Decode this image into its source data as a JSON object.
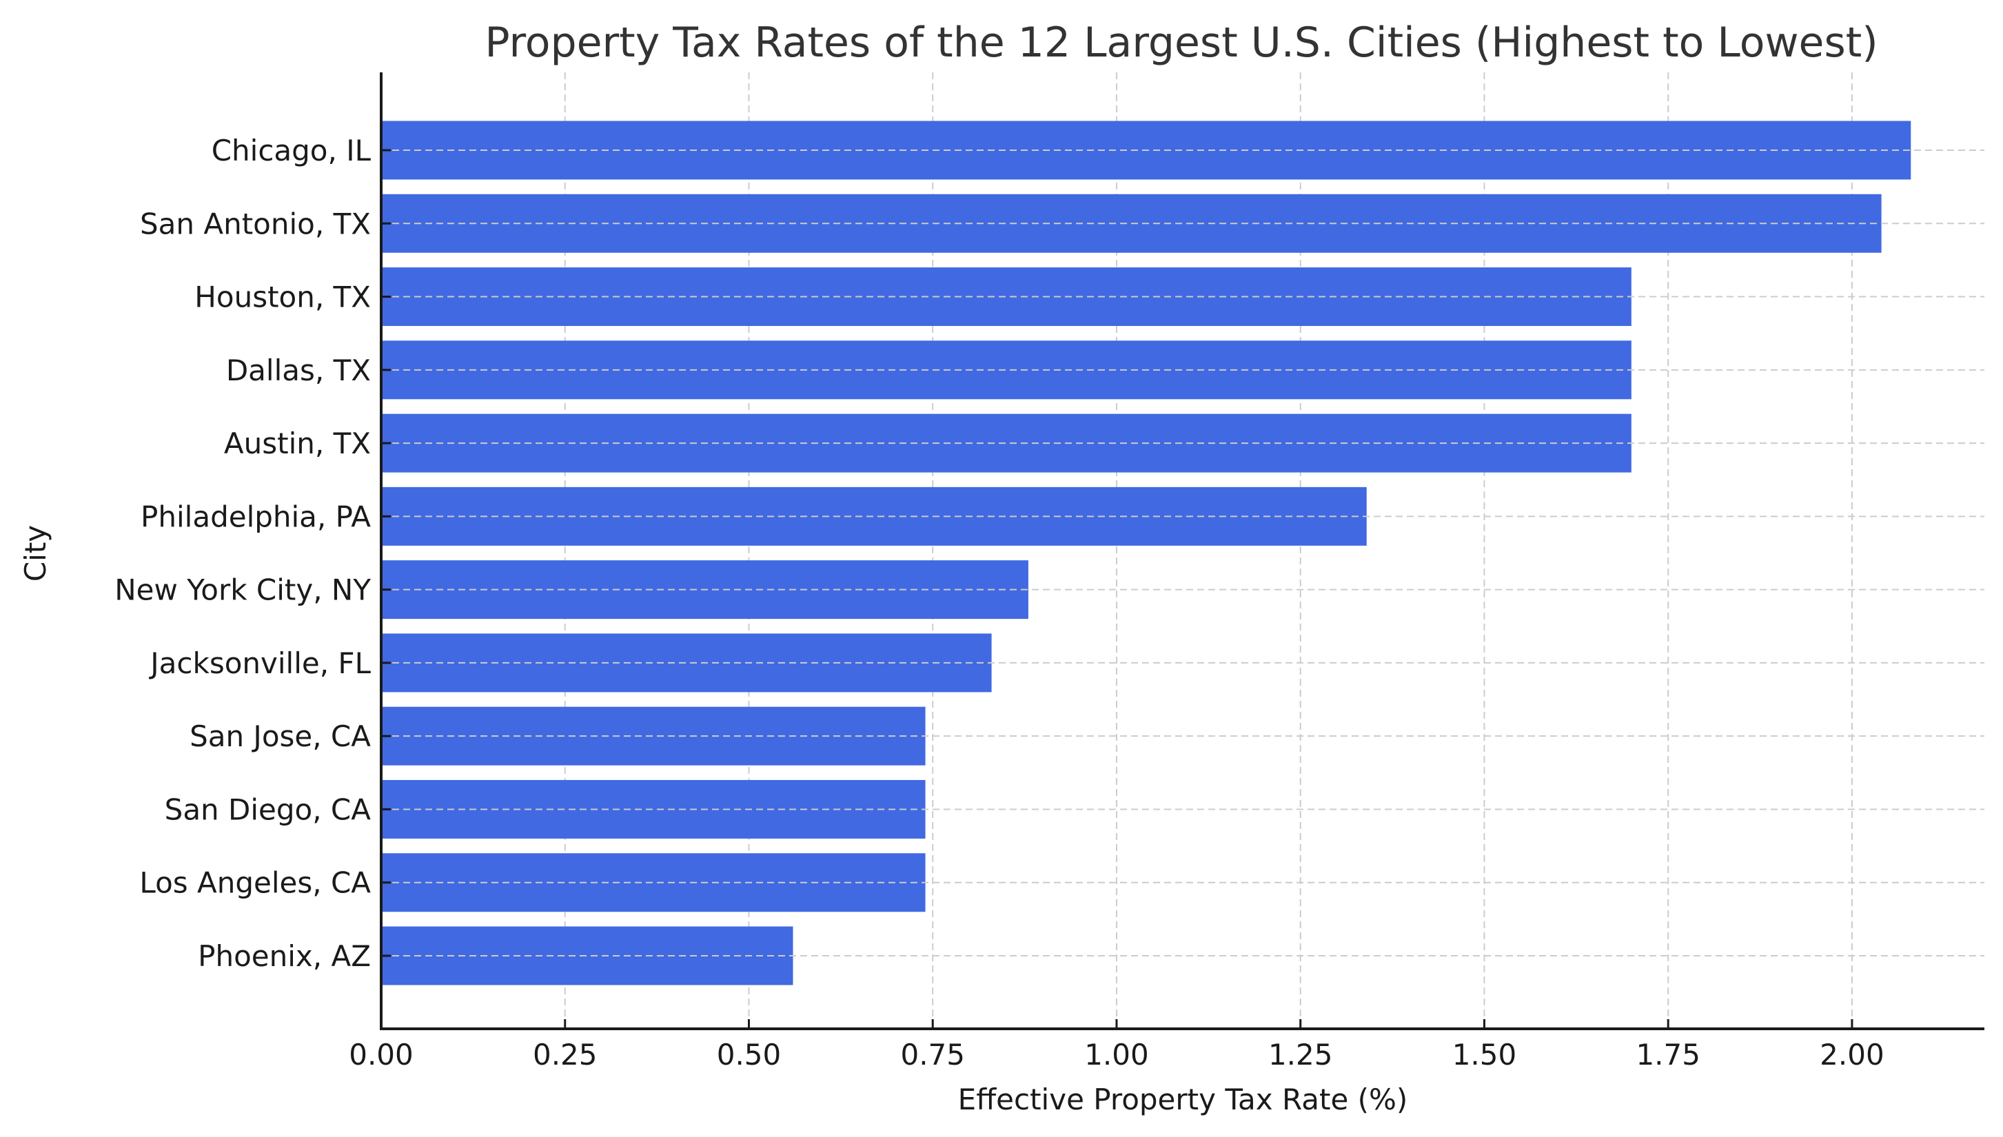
{
  "chart_data": {
    "type": "bar",
    "orientation": "horizontal",
    "title": "Property Tax Rates of the 12 Largest U.S. Cities (Highest to Lowest)",
    "xlabel": "Effective Property Tax Rate (%)",
    "ylabel": "City",
    "categories": [
      "Chicago, IL",
      "San Antonio, TX",
      "Houston, TX",
      "Dallas, TX",
      "Austin, TX",
      "Philadelphia, PA",
      "New York City, NY",
      "Jacksonville, FL",
      "San Jose, CA",
      "San Diego, CA",
      "Los Angeles, CA",
      "Phoenix, AZ"
    ],
    "values": [
      2.08,
      2.04,
      1.7,
      1.7,
      1.7,
      1.34,
      0.88,
      0.83,
      0.74,
      0.74,
      0.74,
      0.56
    ],
    "xlim": [
      0,
      2.18
    ],
    "xticks": [
      0.0,
      0.25,
      0.5,
      0.75,
      1.0,
      1.25,
      1.5,
      1.75,
      2.0
    ],
    "xtick_labels": [
      "0.00",
      "0.25",
      "0.50",
      "0.75",
      "1.00",
      "1.25",
      "1.50",
      "1.75",
      "2.00"
    ],
    "grid": true,
    "grid_style": "dashed",
    "legend": "none",
    "bar_color": "#4169E1"
  }
}
